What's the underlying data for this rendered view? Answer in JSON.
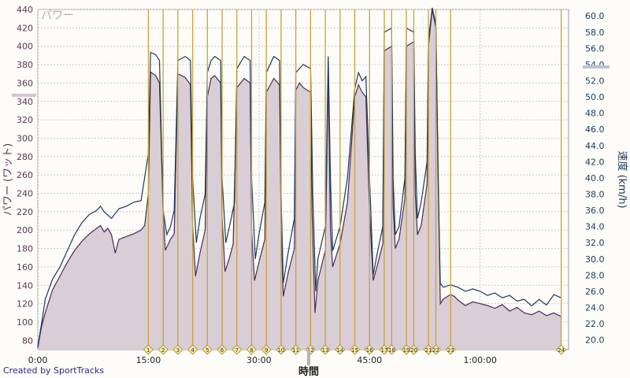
{
  "credit": "Created by SportTracks",
  "chart_data": {
    "type": "area",
    "title": "パワー",
    "xlabel": "時間",
    "ylabel_left": "パワー (ワット)",
    "ylabel_right": "速度 (km/h)",
    "grid": true,
    "colors": {
      "power_line": "#4a2a55",
      "power_fill": "#d9cdd6",
      "speed_line": "#1a3a5c",
      "marker": "#c9a13a",
      "axis_left": "#5a3550",
      "axis_right": "#1a3a5c"
    },
    "x_ticks": [
      {
        "min": 0,
        "label": "0:00"
      },
      {
        "min": 15,
        "label": "15:00"
      },
      {
        "min": 30,
        "label": "30:00"
      },
      {
        "min": 45,
        "label": "45:00"
      },
      {
        "min": 60,
        "label": "1:00:00"
      }
    ],
    "xlim_min": [
      0,
      72
    ],
    "y_left": {
      "lim": [
        70,
        440
      ],
      "ticks": [
        80,
        100,
        120,
        140,
        160,
        180,
        200,
        220,
        240,
        260,
        280,
        300,
        320,
        340,
        360,
        380,
        400,
        420,
        440
      ]
    },
    "y_right": {
      "lim": [
        18.8,
        60.8
      ],
      "ticks": [
        20.0,
        22.0,
        24.0,
        26.0,
        28.0,
        30.0,
        32.0,
        34.0,
        36.0,
        38.0,
        40.0,
        42.0,
        44.0,
        46.0,
        48.0,
        50.0,
        52.0,
        54.0,
        56.0,
        58.0,
        60.0
      ]
    },
    "markers": [
      {
        "label": "1",
        "min": 15.0
      },
      {
        "label": "2",
        "min": 17.0
      },
      {
        "label": "3",
        "min": 19.0
      },
      {
        "label": "4",
        "min": 21.0
      },
      {
        "label": "5",
        "min": 23.0
      },
      {
        "label": "6",
        "min": 25.0
      },
      {
        "label": "7",
        "min": 27.0
      },
      {
        "label": "8",
        "min": 29.0
      },
      {
        "label": "9",
        "min": 31.0
      },
      {
        "label": "10",
        "min": 33.0
      },
      {
        "label": "11",
        "min": 35.0
      },
      {
        "label": "12",
        "min": 37.0
      },
      {
        "label": "13",
        "min": 39.0
      },
      {
        "label": "14",
        "min": 41.0
      },
      {
        "label": "15",
        "min": 43.0
      },
      {
        "label": "16",
        "min": 45.0
      },
      {
        "label": "17",
        "min": 47.0
      },
      {
        "label": "18",
        "min": 48.0
      },
      {
        "label": "19",
        "min": 50.0
      },
      {
        "label": "20",
        "min": 51.0
      },
      {
        "label": "21",
        "min": 53.0
      },
      {
        "label": "22",
        "min": 54.0
      },
      {
        "label": "23",
        "min": 56.0
      },
      {
        "label": "24",
        "min": 71.0
      }
    ],
    "series": [
      {
        "name": "パワー",
        "axis": "left",
        "points": [
          [
            0,
            72
          ],
          [
            0.5,
            95
          ],
          [
            1,
            110
          ],
          [
            2,
            135
          ],
          [
            3,
            150
          ],
          [
            4,
            165
          ],
          [
            5,
            178
          ],
          [
            6,
            188
          ],
          [
            7,
            196
          ],
          [
            8,
            202
          ],
          [
            8.5,
            205
          ],
          [
            9,
            198
          ],
          [
            9.5,
            202
          ],
          [
            10,
            195
          ],
          [
            10.5,
            175
          ],
          [
            11,
            190
          ],
          [
            12,
            193
          ],
          [
            13,
            196
          ],
          [
            14,
            200
          ],
          [
            14.5,
            205
          ],
          [
            15,
            240
          ],
          [
            15.3,
            372
          ],
          [
            16,
            368
          ],
          [
            16.5,
            360
          ],
          [
            17,
            220
          ],
          [
            17.3,
            178
          ],
          [
            18,
            190
          ],
          [
            18.5,
            196
          ],
          [
            19,
            370
          ],
          [
            20,
            366
          ],
          [
            20.7,
            358
          ],
          [
            21,
            205
          ],
          [
            21.4,
            150
          ],
          [
            22,
            175
          ],
          [
            22.7,
            200
          ],
          [
            23,
            345
          ],
          [
            23.5,
            365
          ],
          [
            24,
            368
          ],
          [
            24.8,
            360
          ],
          [
            25,
            215
          ],
          [
            25.4,
            155
          ],
          [
            26,
            170
          ],
          [
            26.5,
            185
          ],
          [
            27,
            355
          ],
          [
            28,
            365
          ],
          [
            28.8,
            360
          ],
          [
            29,
            200
          ],
          [
            29.4,
            145
          ],
          [
            30,
            165
          ],
          [
            30.8,
            190
          ],
          [
            31,
            350
          ],
          [
            32,
            365
          ],
          [
            32.8,
            358
          ],
          [
            33,
            210
          ],
          [
            33.3,
            128
          ],
          [
            34,
            155
          ],
          [
            34.8,
            180
          ],
          [
            35,
            352
          ],
          [
            35.5,
            360
          ],
          [
            36,
            355
          ],
          [
            37,
            350
          ],
          [
            37.2,
            220
          ],
          [
            37.6,
            110
          ],
          [
            38,
            145
          ],
          [
            39,
            178
          ],
          [
            39.4,
            370
          ],
          [
            39.7,
            200
          ],
          [
            40,
            160
          ],
          [
            41,
            185
          ],
          [
            42,
            230
          ],
          [
            43,
            345
          ],
          [
            43.5,
            358
          ],
          [
            44,
            350
          ],
          [
            44.5,
            345
          ],
          [
            45,
            220
          ],
          [
            45.5,
            145
          ],
          [
            46,
            160
          ],
          [
            46.8,
            185
          ],
          [
            47,
            395
          ],
          [
            48,
            400
          ],
          [
            48.2,
            225
          ],
          [
            48.5,
            180
          ],
          [
            49,
            190
          ],
          [
            49.8,
            235
          ],
          [
            50,
            400
          ],
          [
            51,
            405
          ],
          [
            51.2,
            240
          ],
          [
            51.5,
            195
          ],
          [
            52,
            205
          ],
          [
            52.8,
            250
          ],
          [
            53,
            400
          ],
          [
            53.5,
            440
          ],
          [
            54,
            420
          ],
          [
            54.3,
            270
          ],
          [
            54.6,
            120
          ],
          [
            55,
            125
          ],
          [
            56,
            130
          ],
          [
            56.5,
            128
          ],
          [
            57,
            124
          ],
          [
            58,
            118
          ],
          [
            59,
            122
          ],
          [
            60,
            120
          ],
          [
            61,
            118
          ],
          [
            62,
            115
          ],
          [
            63,
            119
          ],
          [
            64,
            112
          ],
          [
            65,
            116
          ],
          [
            66,
            110
          ],
          [
            67,
            108
          ],
          [
            68,
            112
          ],
          [
            69,
            107
          ],
          [
            70,
            110
          ],
          [
            71,
            106
          ]
        ]
      },
      {
        "name": "速度",
        "axis": "right",
        "points": [
          [
            0,
            19.2
          ],
          [
            0.5,
            22
          ],
          [
            1,
            25
          ],
          [
            2,
            27.5
          ],
          [
            3,
            29
          ],
          [
            4,
            31
          ],
          [
            5,
            33
          ],
          [
            6,
            34.5
          ],
          [
            7,
            35.5
          ],
          [
            8,
            36
          ],
          [
            8.5,
            36.5
          ],
          [
            9,
            35.8
          ],
          [
            10,
            35
          ],
          [
            10.5,
            35.6
          ],
          [
            11,
            36.2
          ],
          [
            12,
            36.5
          ],
          [
            13,
            37
          ],
          [
            14,
            37.2
          ],
          [
            15,
            43
          ],
          [
            15.3,
            55.5
          ],
          [
            16,
            55.2
          ],
          [
            16.5,
            54.5
          ],
          [
            17,
            36
          ],
          [
            17.5,
            33
          ],
          [
            18,
            34
          ],
          [
            18.5,
            36
          ],
          [
            19,
            54.5
          ],
          [
            20,
            55
          ],
          [
            20.7,
            54.5
          ],
          [
            21,
            40
          ],
          [
            21.5,
            32
          ],
          [
            22,
            35
          ],
          [
            22.7,
            38
          ],
          [
            23,
            53
          ],
          [
            23.5,
            54.5
          ],
          [
            24,
            55
          ],
          [
            24.8,
            54.5
          ],
          [
            25,
            40
          ],
          [
            25.5,
            32
          ],
          [
            26,
            34
          ],
          [
            26.7,
            37
          ],
          [
            27,
            53.5
          ],
          [
            28,
            55
          ],
          [
            28.8,
            54.5
          ],
          [
            29,
            40
          ],
          [
            29.5,
            30
          ],
          [
            30,
            33
          ],
          [
            30.8,
            37
          ],
          [
            31,
            53
          ],
          [
            32,
            55
          ],
          [
            32.8,
            54.5
          ],
          [
            33,
            38
          ],
          [
            33.3,
            27
          ],
          [
            34,
            31
          ],
          [
            34.8,
            35
          ],
          [
            35,
            53
          ],
          [
            36,
            54
          ],
          [
            37,
            53.5
          ],
          [
            37.3,
            38
          ],
          [
            37.7,
            26
          ],
          [
            38,
            30
          ],
          [
            39,
            34
          ],
          [
            39.4,
            55
          ],
          [
            39.7,
            40
          ],
          [
            40,
            31
          ],
          [
            41,
            34
          ],
          [
            42,
            40
          ],
          [
            43,
            51
          ],
          [
            43.5,
            53
          ],
          [
            44,
            52
          ],
          [
            44.5,
            52.5
          ],
          [
            45,
            40
          ],
          [
            45.5,
            28
          ],
          [
            46,
            30.5
          ],
          [
            46.8,
            34
          ],
          [
            47,
            58
          ],
          [
            48,
            58.5
          ],
          [
            48.2,
            40
          ],
          [
            48.5,
            33
          ],
          [
            49,
            34
          ],
          [
            49.8,
            40
          ],
          [
            50,
            58.5
          ],
          [
            51,
            58
          ],
          [
            51.2,
            43
          ],
          [
            51.5,
            35
          ],
          [
            52,
            37
          ],
          [
            52.8,
            42
          ],
          [
            53,
            57
          ],
          [
            53.5,
            61
          ],
          [
            54,
            59
          ],
          [
            54.3,
            40
          ],
          [
            54.6,
            27
          ],
          [
            55,
            26.5
          ],
          [
            56,
            26.8
          ],
          [
            57,
            26.5
          ],
          [
            58,
            26
          ],
          [
            59,
            26.3
          ],
          [
            60,
            26
          ],
          [
            61,
            25.5
          ],
          [
            62,
            25.8
          ],
          [
            63,
            25.2
          ],
          [
            64,
            25.5
          ],
          [
            65,
            24.8
          ],
          [
            66,
            25
          ],
          [
            67,
            24.2
          ],
          [
            68,
            25
          ],
          [
            69,
            24.3
          ],
          [
            70,
            25.6
          ],
          [
            71,
            25.2
          ]
        ]
      }
    ]
  }
}
